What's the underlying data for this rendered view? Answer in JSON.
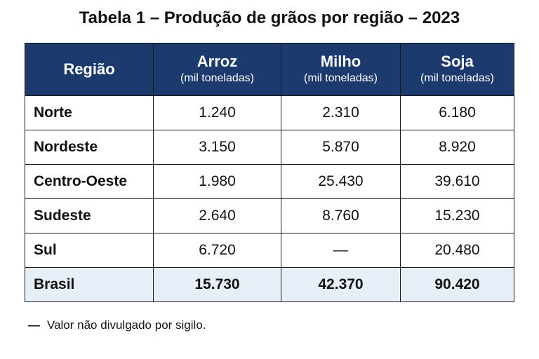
{
  "title": "Tabela 1 – Produção de grãos por região – 2023",
  "table": {
    "columns": [
      {
        "label": "Região",
        "unit": ""
      },
      {
        "label": "Arroz",
        "unit": "(mil toneladas)"
      },
      {
        "label": "Milho",
        "unit": "(mil toneladas)"
      },
      {
        "label": "Soja",
        "unit": "(mil toneladas)"
      }
    ],
    "rows": [
      {
        "region": "Norte",
        "arroz": "1.240",
        "milho": "2.310",
        "soja": "6.180"
      },
      {
        "region": "Nordeste",
        "arroz": "3.150",
        "milho": "5.870",
        "soja": "8.920"
      },
      {
        "region": "Centro-Oeste",
        "arroz": "1.980",
        "milho": "25.430",
        "soja": "39.610"
      },
      {
        "region": "Sudeste",
        "arroz": "2.640",
        "milho": "8.760",
        "soja": "15.230"
      },
      {
        "region": "Sul",
        "arroz": "6.720",
        "milho": "—",
        "soja": "20.480"
      }
    ],
    "total": {
      "region": "Brasil",
      "arroz": "15.730",
      "milho": "42.370",
      "soja": "90.420"
    }
  },
  "footnote": {
    "symbol": "—",
    "text": "Valor não divulgado por sigilo."
  },
  "colors": {
    "header_bg": "#1d3a6e",
    "header_text": "#ffffff",
    "total_row_bg": "#e6eef8"
  }
}
